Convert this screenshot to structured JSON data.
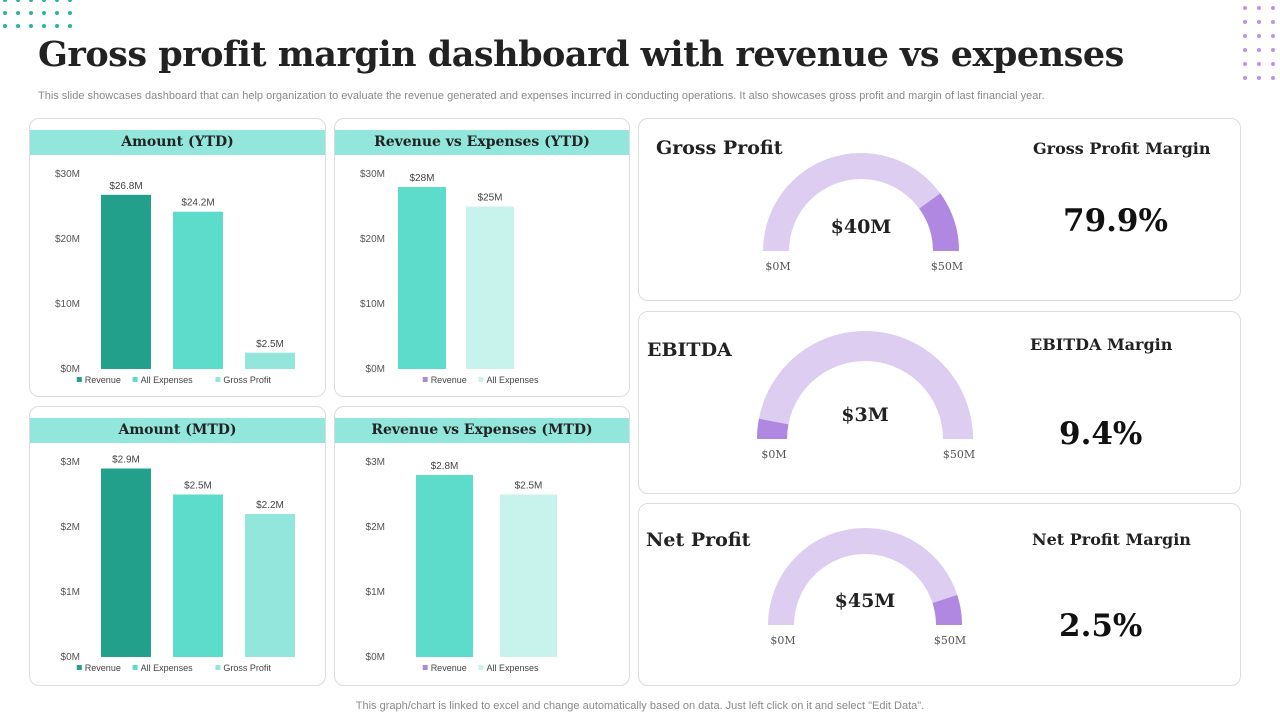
{
  "title": "Gross profit margin dashboard with revenue vs expenses",
  "subtitle": "This slide showcases dashboard that can help organization to evaluate the revenue generated and expenses incurred in conducting operations. It also showcases gross profit and margin of last financial year.",
  "footer": "This graph/chart is linked to excel and change automatically based on data. Just left click on it and select \"Edit Data\".",
  "colors": {
    "dark_teal": "#22a08c",
    "teal": "#5ddccc",
    "light_teal": "#93e6dc",
    "pale_teal": "#c8f2ec",
    "gauge_track": "#dccdf1",
    "gauge_fill": "#b088e1",
    "legend_purple": "#b088e1"
  },
  "chart_data": [
    {
      "type": "bar",
      "title": "Amount (YTD)",
      "categories": [
        "Revenue",
        "All Expenses",
        "Gross Profit"
      ],
      "values": [
        26.8,
        24.2,
        2.5
      ],
      "value_labels": [
        "$26.8M",
        "$24.2M",
        "$2.5M"
      ],
      "bar_colors": [
        "#22a08c",
        "#5ddccc",
        "#93e6dc"
      ],
      "legend_colors": [
        "#22a08c",
        "#5ddccc",
        "#93e6dc"
      ],
      "legend": [
        "Revenue",
        "All Expenses",
        "Gross Profit"
      ],
      "ylim": [
        0,
        30
      ],
      "yticks": [
        "$0M",
        "$10M",
        "$20M",
        "$30M"
      ]
    },
    {
      "type": "bar",
      "title": "Revenue vs Expenses (YTD)",
      "categories": [
        "Revenue",
        "All Expenses"
      ],
      "values": [
        28,
        25
      ],
      "value_labels": [
        "$28M",
        "$25M"
      ],
      "bar_colors": [
        "#5ddccc",
        "#c8f2ec"
      ],
      "legend_colors": [
        "#b088e1",
        "#c8f2ec"
      ],
      "legend": [
        "Revenue",
        "All Expenses"
      ],
      "ylim": [
        0,
        30
      ],
      "yticks": [
        "$0M",
        "$10M",
        "$20M",
        "$30M"
      ]
    },
    {
      "type": "bar",
      "title": "Amount (MTD)",
      "categories": [
        "Revenue",
        "All Expenses",
        "Gross Profit"
      ],
      "values": [
        2.9,
        2.5,
        2.2
      ],
      "value_labels": [
        "$2.9M",
        "$2.5M",
        "$2.2M"
      ],
      "bar_colors": [
        "#22a08c",
        "#5ddccc",
        "#93e6dc"
      ],
      "legend_colors": [
        "#22a08c",
        "#5ddccc",
        "#93e6dc"
      ],
      "legend": [
        "Revenue",
        "All Expenses",
        "Gross Profit"
      ],
      "ylim": [
        0,
        3
      ],
      "yticks": [
        "$0M",
        "$1M",
        "$2M",
        "$3M"
      ]
    },
    {
      "type": "bar",
      "title": "Revenue vs Expenses (MTD)",
      "categories": [
        "Revenue",
        "All Expenses"
      ],
      "values": [
        2.8,
        2.5
      ],
      "value_labels": [
        "$2.8M",
        "$2.5M"
      ],
      "bar_colors": [
        "#5ddccc",
        "#c8f2ec"
      ],
      "legend_colors": [
        "#b088e1",
        "#c8f2ec"
      ],
      "legend": [
        "Revenue",
        "All Expenses"
      ],
      "ylim": [
        0,
        3
      ],
      "yticks": [
        "$0M",
        "$1M",
        "$2M",
        "$3M"
      ]
    }
  ],
  "gauges": [
    {
      "label": "Gross Profit",
      "value": 40,
      "value_text": "$40M",
      "min_text": "$0M",
      "max_text": "$50M",
      "max": 50,
      "margin_label": "Gross Profit Margin",
      "margin_value": "79.9%"
    },
    {
      "label": "EBITDA",
      "value": 3,
      "value_text": "$3M",
      "min_text": "$0M",
      "max_text": "$50M",
      "max": 50,
      "margin_label": "EBITDA Margin",
      "margin_value": "9.4%"
    },
    {
      "label": "Net Profit",
      "value": 45,
      "value_text": "$45M",
      "min_text": "$0M",
      "max_text": "$50M",
      "max": 50,
      "margin_label": "Net Profit Margin",
      "margin_value": "2.5%"
    }
  ]
}
